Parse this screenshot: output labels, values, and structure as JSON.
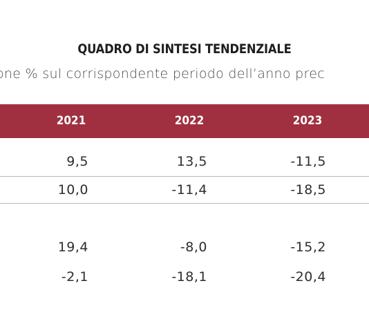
{
  "table": {
    "title": "QUADRO DI SINTESI TENDENZIALE",
    "subtitle": "one % sul corrispondente periodo dell’anno prec",
    "header_color": "#a03040",
    "years": [
      "2021",
      "2022",
      "2023"
    ],
    "rows": [
      [
        "9,5",
        "13,5",
        "-11,5"
      ],
      [
        "10,0",
        "-11,4",
        "-18,5"
      ],
      [
        "19,4",
        "-8,0",
        "-15,2"
      ],
      [
        "-2,1",
        "-18,1",
        "-20,4"
      ]
    ]
  }
}
